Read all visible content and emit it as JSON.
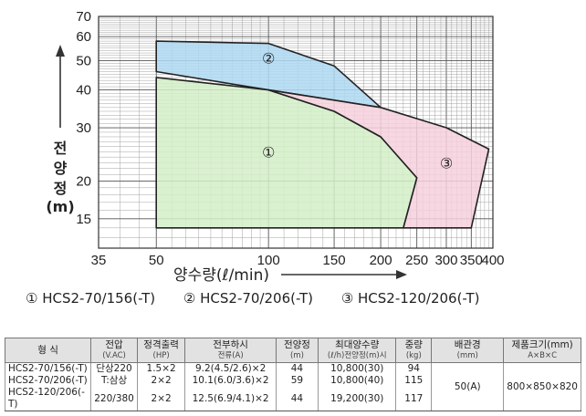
{
  "chart_data": {
    "type": "area",
    "x_scale": "log",
    "y_scale": "log",
    "xlim": [
      35,
      400
    ],
    "ylim": [
      12,
      70
    ],
    "x_ticks": [
      35,
      50,
      100,
      150,
      200,
      250,
      300,
      350,
      400
    ],
    "y_ticks": [
      15,
      20,
      30,
      40,
      50,
      60,
      70
    ],
    "ylabel_chars": [
      "전",
      "양",
      "정",
      "(m)"
    ],
    "xlabel": "양수량(ℓ/min)",
    "grid": true,
    "series": [
      {
        "name": "①",
        "color": "#d4eec8",
        "points": [
          [
            50,
            44
          ],
          [
            100,
            40
          ],
          [
            150,
            34
          ],
          [
            200,
            28
          ],
          [
            250,
            20.5
          ],
          [
            230,
            14
          ],
          [
            50,
            14
          ]
        ]
      },
      {
        "name": "②",
        "color": "#aed8f2",
        "points": [
          [
            50,
            58
          ],
          [
            100,
            57
          ],
          [
            150,
            48
          ],
          [
            200,
            35
          ],
          [
            100,
            40
          ],
          [
            50,
            46
          ]
        ]
      },
      {
        "name": "③",
        "color": "#f6d0dc",
        "points": [
          [
            100,
            40
          ],
          [
            200,
            35
          ],
          [
            300,
            30
          ],
          [
            390,
            25.5
          ],
          [
            350,
            14
          ],
          [
            230,
            14
          ],
          [
            250,
            20.5
          ],
          [
            200,
            28
          ],
          [
            150,
            34
          ]
        ]
      }
    ],
    "region_labels": [
      {
        "text": "①",
        "x": 100,
        "y": 25
      },
      {
        "text": "②",
        "x": 100,
        "y": 51
      },
      {
        "text": "③",
        "x": 300,
        "y": 23
      }
    ]
  },
  "legend": [
    "① HCS2-70/156(-T)",
    "② HCS2-70/206(-T)",
    "③ HCS2-120/206(-T)"
  ],
  "table": {
    "headers": {
      "model": "형 식",
      "voltage": "전압",
      "voltage_unit": "(V.AC)",
      "power": "정격출력",
      "power_unit": "(HP)",
      "current": "전부하시",
      "current_unit": "전류(A)",
      "head": "전양정",
      "head_unit": "(m)",
      "flow": "최대양수량",
      "flow_unit": "(ℓ/h)전양정(m)시",
      "weight": "중량",
      "weight_unit": "(kg)",
      "pipe": "배관경",
      "pipe_unit": "(mm)",
      "size": "제품크기(mm)",
      "size_unit": "A×B×C"
    },
    "rows": [
      {
        "model": "HCS2-70/156(-T)",
        "voltage": "단상220",
        "power": "1.5×2",
        "current": "9.2(4.5/2.6)×2",
        "head": "44",
        "flow": "10,800(30)",
        "weight": "94"
      },
      {
        "model": "HCS2-70/206(-T)",
        "voltage": "T:삼상",
        "power": "2×2",
        "current": "10.1(6.0/3.6)×2",
        "head": "59",
        "flow": "10,800(40)",
        "weight": "115"
      },
      {
        "model": "HCS2-120/206(-T)",
        "voltage": "220/380",
        "power": "2×2",
        "current": "12.5(6.9/4.1)×2",
        "head": "44",
        "flow": "19,200(30)",
        "weight": "117"
      }
    ],
    "pipe_value": "50(A)",
    "size_value": "800×850×820"
  }
}
